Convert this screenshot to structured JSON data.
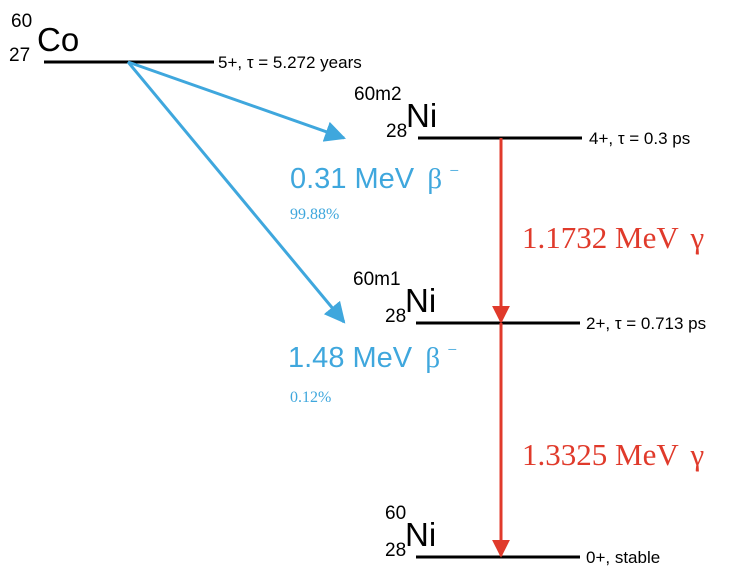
{
  "colors": {
    "level": "#000000",
    "beta": "#3fa7dd",
    "gamma": "#e03a2b"
  },
  "parent": {
    "mass": "60",
    "z": "27",
    "symbol": "Co",
    "level_label": "5+, τ = 5.272 years"
  },
  "states": [
    {
      "mass": "60m2",
      "z": "28",
      "symbol": "Ni",
      "level_label": "4+, τ = 0.3 ps"
    },
    {
      "mass": "60m1",
      "z": "28",
      "symbol": "Ni",
      "level_label": "2+, τ = 0.713 ps"
    },
    {
      "mass": "60",
      "z": "28",
      "symbol": "Ni",
      "level_label": "0+, stable"
    }
  ],
  "beta_decays": [
    {
      "energy": "0.31 MeV",
      "particle": "β",
      "sign": "−",
      "branching": "99.88%"
    },
    {
      "energy": "1.48 MeV",
      "particle": "β",
      "sign": "−",
      "branching": "0.12%"
    }
  ],
  "gamma_transitions": [
    {
      "energy": "1.1732 MeV",
      "particle": "γ"
    },
    {
      "energy": "1.3325 MeV",
      "particle": "γ"
    }
  ]
}
